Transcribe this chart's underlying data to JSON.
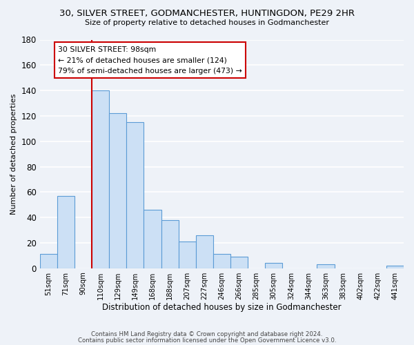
{
  "title": "30, SILVER STREET, GODMANCHESTER, HUNTINGDON, PE29 2HR",
  "subtitle": "Size of property relative to detached houses in Godmanchester",
  "xlabel": "Distribution of detached houses by size in Godmanchester",
  "ylabel": "Number of detached properties",
  "bar_labels": [
    "51sqm",
    "71sqm",
    "90sqm",
    "110sqm",
    "129sqm",
    "149sqm",
    "168sqm",
    "188sqm",
    "207sqm",
    "227sqm",
    "246sqm",
    "266sqm",
    "285sqm",
    "305sqm",
    "324sqm",
    "344sqm",
    "363sqm",
    "383sqm",
    "402sqm",
    "422sqm",
    "441sqm"
  ],
  "bar_values": [
    11,
    57,
    0,
    140,
    122,
    115,
    46,
    38,
    21,
    26,
    11,
    9,
    0,
    4,
    0,
    0,
    3,
    0,
    0,
    0,
    2
  ],
  "bar_color": "#cce0f5",
  "bar_edge_color": "#5b9bd5",
  "annotation_title": "30 SILVER STREET: 98sqm",
  "annotation_line1": "← 21% of detached houses are smaller (124)",
  "annotation_line2": "79% of semi-detached houses are larger (473) →",
  "annotation_box_color": "#ffffff",
  "annotation_box_edge": "#cc0000",
  "marker_line_color": "#cc0000",
  "ylim": [
    0,
    180
  ],
  "yticks": [
    0,
    20,
    40,
    60,
    80,
    100,
    120,
    140,
    160,
    180
  ],
  "footer1": "Contains HM Land Registry data © Crown copyright and database right 2024.",
  "footer2": "Contains public sector information licensed under the Open Government Licence v3.0.",
  "background_color": "#eef2f8",
  "grid_color": "#ffffff"
}
